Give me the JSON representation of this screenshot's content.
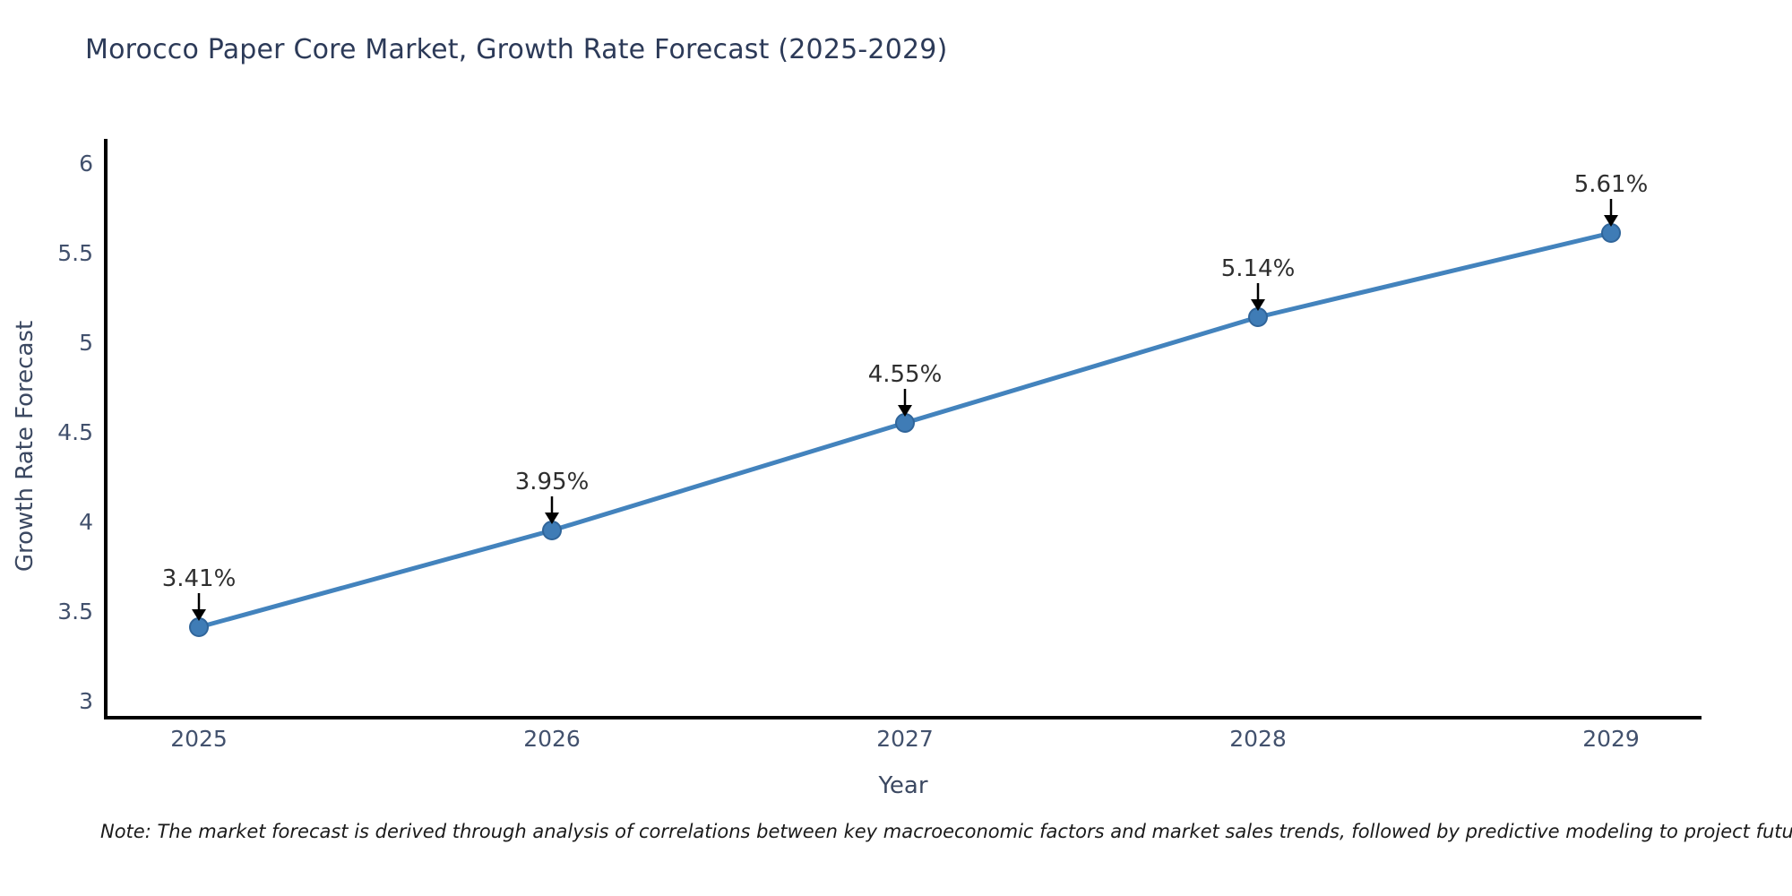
{
  "note": "Note: The market forecast is derived through analysis of correlations between key macroeconomic factors and market sales trends, followed by predictive modeling to project future sales",
  "colors": {
    "line": "#4383bd",
    "marker_fill": "#3f7cb6",
    "marker_edge": "#30659a",
    "axis": "#000000",
    "tick_text": "#42516d",
    "title_text": "#2c3a58",
    "annotation_text": "#2e2e2e",
    "arrow": "#000000",
    "background": "#ffffff"
  },
  "chart_data": {
    "type": "line",
    "title": "Morocco Paper Core Market, Growth Rate Forecast (2025-2029)",
    "x": [
      2025,
      2026,
      2027,
      2028,
      2029
    ],
    "series": [
      {
        "name": "Growth Rate Forecast",
        "values": [
          3.41,
          3.95,
          4.55,
          5.14,
          5.61
        ]
      }
    ],
    "annotations": [
      "3.41%",
      "3.95%",
      "4.55%",
      "5.14%",
      "5.61%"
    ],
    "xlabel": "Year",
    "ylabel": "Growth Rate Forecast",
    "ylim": [
      2.9,
      6.14
    ],
    "yticks": [
      3,
      3.5,
      4,
      4.5,
      5,
      5.5,
      6
    ],
    "grid": false,
    "legend": "none",
    "marker": "circle",
    "annotation_arrows": "down"
  }
}
